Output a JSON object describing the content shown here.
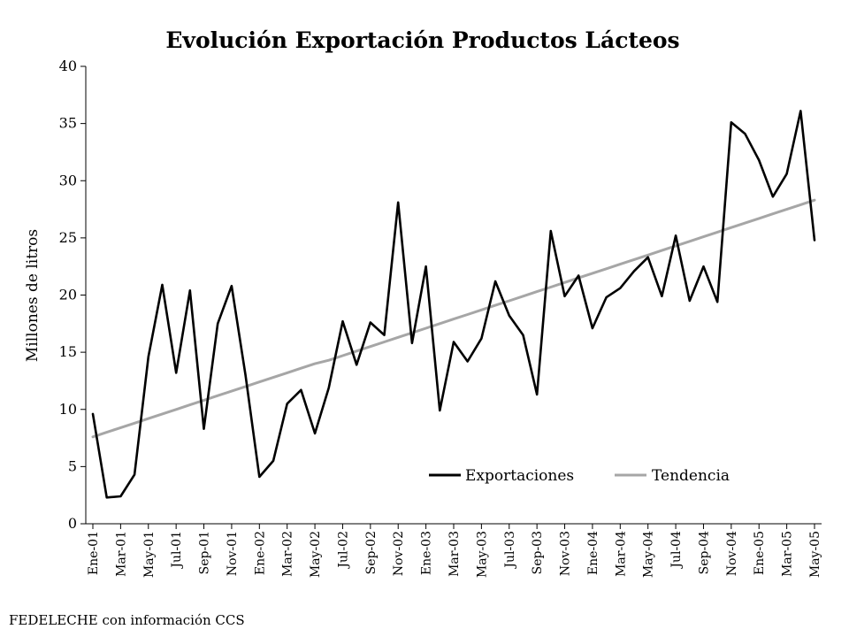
{
  "chart_data": {
    "type": "line",
    "title": "Evolución Exportación Productos Lácteos",
    "ylabel": "Millones de litros",
    "xlabel": "",
    "ylim": [
      0,
      40
    ],
    "yticks": [
      0,
      5,
      10,
      15,
      20,
      25,
      30,
      35,
      40
    ],
    "grid": false,
    "legend_position": "bottom-right",
    "x": [
      "Ene-01",
      "Feb-01",
      "Mar-01",
      "Abr-01",
      "May-01",
      "Jun-01",
      "Jul-01",
      "Ago-01",
      "Sep-01",
      "Oct-01",
      "Nov-01",
      "Dic-01",
      "Ene-02",
      "Feb-02",
      "Mar-02",
      "Abr-02",
      "May-02",
      "Jun-02",
      "Jul-02",
      "Ago-02",
      "Sep-02",
      "Oct-02",
      "Nov-02",
      "Dic-02",
      "Ene-03",
      "Feb-03",
      "Mar-03",
      "Abr-03",
      "May-03",
      "Jun-03",
      "Jul-03",
      "Ago-03",
      "Sep-03",
      "Oct-03",
      "Nov-03",
      "Dic-03",
      "Ene-04",
      "Feb-04",
      "Mar-04",
      "Abr-04",
      "May-04",
      "Jun-04",
      "Jul-04",
      "Ago-04",
      "Sep-04",
      "Oct-04",
      "Nov-04",
      "Dic-04",
      "Ene-05",
      "Feb-05",
      "Mar-05",
      "Abr-05",
      "May-05"
    ],
    "xtick_labels": [
      "Ene-01",
      "Mar-01",
      "May-01",
      "Jul-01",
      "Sep-01",
      "Nov-01",
      "Ene-02",
      "Mar-02",
      "May-02",
      "Jul-02",
      "Sep-02",
      "Nov-02",
      "Ene-03",
      "Mar-03",
      "May-03",
      "Jul-03",
      "Sep-03",
      "Nov-03",
      "Ene-04",
      "Mar-04",
      "May-04",
      "Jul-04",
      "Sep-04",
      "Nov-04",
      "Ene-05",
      "Mar-05",
      "May-05"
    ],
    "series": [
      {
        "name": "Exportaciones",
        "color": "#000000",
        "values": [
          9.6,
          2.3,
          2.4,
          4.3,
          14.6,
          20.9,
          13.2,
          20.4,
          8.3,
          17.5,
          20.8,
          13.0,
          4.1,
          5.5,
          10.5,
          11.7,
          7.9,
          11.9,
          17.7,
          13.9,
          17.6,
          16.5,
          28.1,
          15.8,
          22.5,
          9.9,
          15.9,
          14.2,
          16.2,
          21.2,
          18.2,
          16.5,
          11.3,
          25.6,
          19.9,
          21.7,
          17.1,
          19.8,
          20.6,
          22.1,
          23.3,
          19.9,
          25.2,
          19.5,
          22.5,
          19.4,
          35.1,
          34.1,
          31.8,
          28.6,
          30.6,
          36.1,
          24.8
        ]
      },
      {
        "name": "Tendencia",
        "color": "#a6a6a6",
        "values": [
          7.6,
          8.0,
          8.4,
          8.8,
          9.2,
          9.6,
          10.0,
          10.4,
          10.8,
          11.2,
          11.6,
          12.0,
          12.4,
          12.8,
          13.2,
          13.6,
          14.0,
          14.3,
          14.7,
          15.1,
          15.5,
          15.9,
          16.3,
          16.7,
          17.1,
          17.5,
          17.9,
          18.3,
          18.7,
          19.1,
          19.5,
          19.9,
          20.3,
          20.7,
          21.1,
          21.5,
          21.9,
          22.3,
          22.7,
          23.1,
          23.5,
          23.9,
          24.3,
          24.7,
          25.1,
          25.5,
          25.9,
          26.3,
          26.7,
          27.1,
          27.5,
          27.9,
          28.3
        ]
      }
    ],
    "legend": {
      "exports_label": "Exportaciones",
      "trend_label": "Tendencia"
    },
    "source": "FEDELECHE con información CCS"
  }
}
